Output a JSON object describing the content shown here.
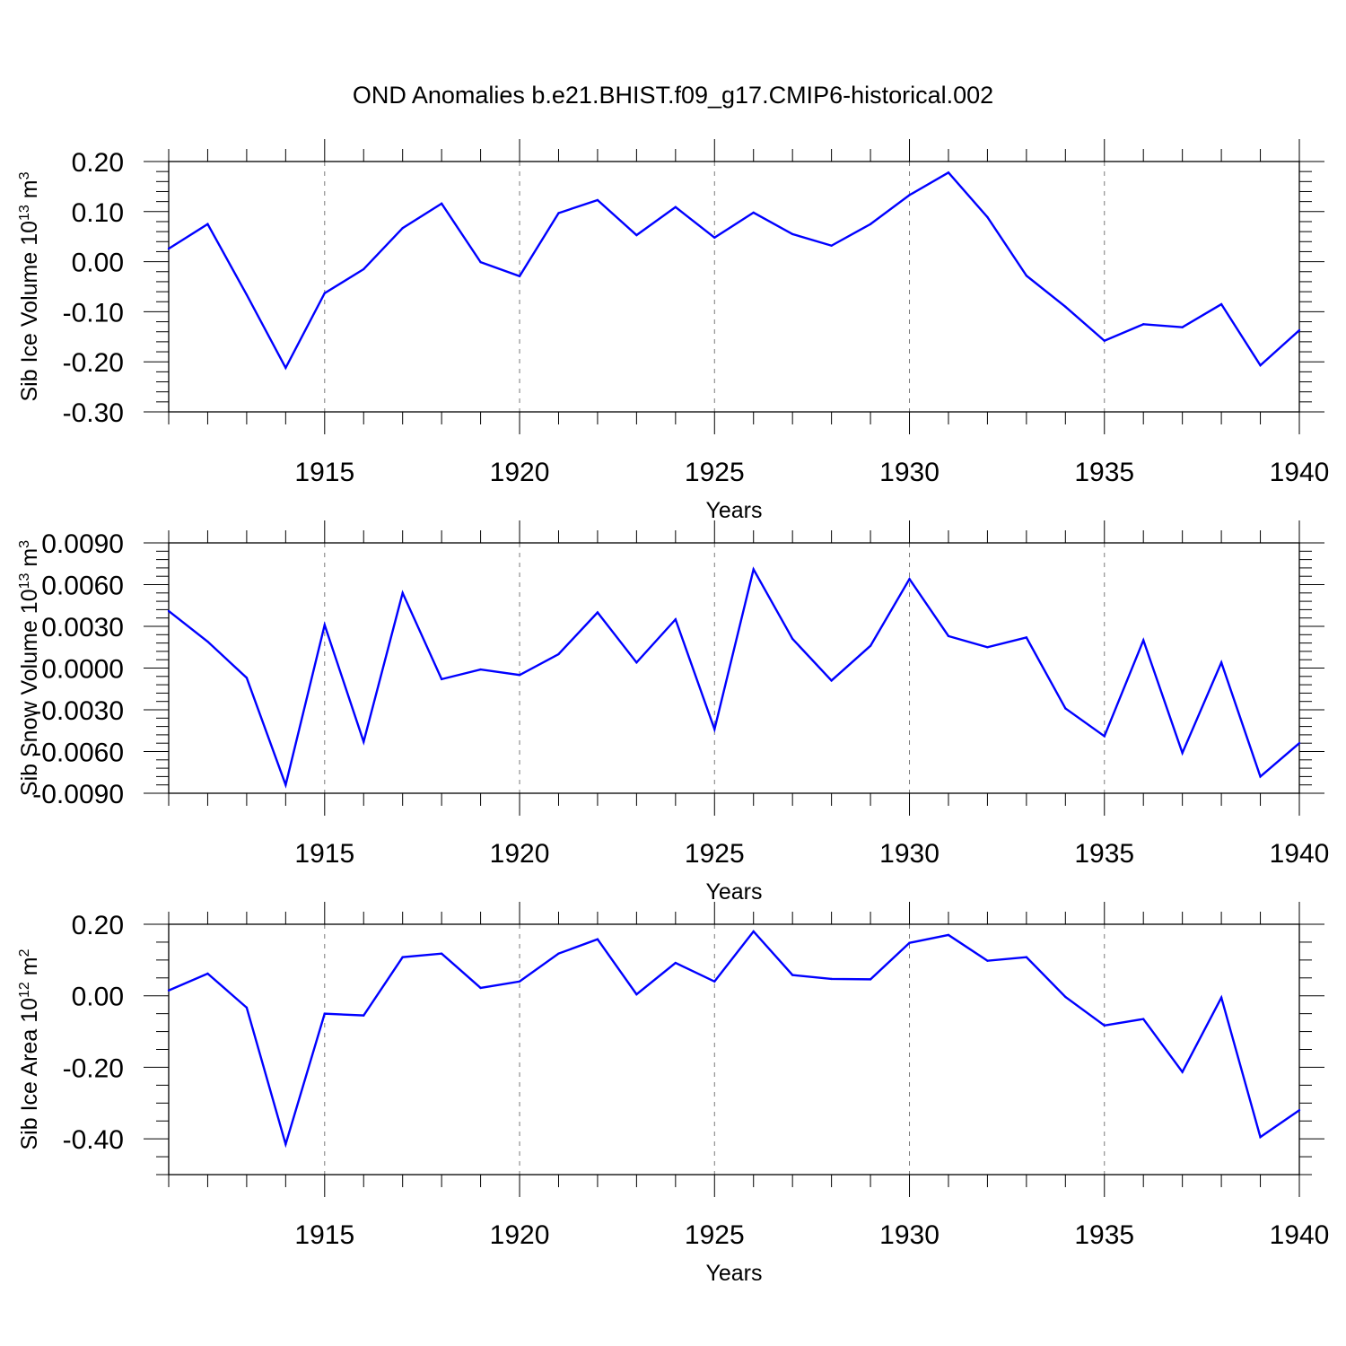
{
  "title": "OND Anomalies b.e21.BHIST.f09_g17.CMIP6-historical.002",
  "chart_data": [
    {
      "type": "line",
      "name": "ice-volume",
      "ylabel": "Sib Ice Volume 10",
      "ylabel_exp": "13",
      "ylabel_unit": " m",
      "ylabel_unit_exp": "3",
      "xlabel": "Years",
      "xlim": [
        1911,
        1940
      ],
      "ylim": [
        -0.3,
        0.2
      ],
      "yticks": [
        0.2,
        0.1,
        0.0,
        -0.1,
        -0.2,
        -0.3
      ],
      "ytick_labels": [
        "0.20",
        "0.10",
        "0.00",
        "-0.10",
        "-0.20",
        "-0.30"
      ],
      "xticks": [
        1915,
        1920,
        1925,
        1930,
        1935,
        1940
      ],
      "xtick_labels": [
        "1915",
        "1920",
        "1925",
        "1930",
        "1935",
        "1940"
      ],
      "line_color": "#0000ff",
      "x": [
        1911,
        1912,
        1913,
        1914,
        1915,
        1916,
        1917,
        1918,
        1919,
        1920,
        1921,
        1922,
        1923,
        1924,
        1925,
        1926,
        1927,
        1928,
        1929,
        1930,
        1931,
        1932,
        1933,
        1934,
        1935,
        1936,
        1937,
        1938,
        1939,
        1940
      ],
      "values": [
        0.026,
        0.075,
        -0.066,
        -0.212,
        -0.063,
        -0.015,
        0.067,
        0.116,
        -0.001,
        -0.029,
        0.097,
        0.123,
        0.053,
        0.109,
        0.048,
        0.098,
        0.055,
        0.032,
        0.075,
        0.133,
        0.178,
        0.089,
        -0.028,
        -0.09,
        -0.158,
        -0.125,
        -0.131,
        -0.085,
        -0.207,
        -0.137
      ]
    },
    {
      "type": "line",
      "name": "snow-volume",
      "ylabel": "Sib Snow Volume 10",
      "ylabel_exp": "13",
      "ylabel_unit": " m",
      "ylabel_unit_exp": "3",
      "xlabel": "Years",
      "xlim": [
        1911,
        1940
      ],
      "ylim": [
        -0.009,
        0.009
      ],
      "yticks": [
        0.009,
        0.006,
        0.003,
        0.0,
        -0.003,
        -0.006,
        -0.009
      ],
      "ytick_labels": [
        "0.0090",
        "0.0060",
        "0.0030",
        "0.0000",
        "-0.0030",
        "-0.0060",
        "-0.0090"
      ],
      "xticks": [
        1915,
        1920,
        1925,
        1930,
        1935,
        1940
      ],
      "xtick_labels": [
        "1915",
        "1920",
        "1925",
        "1930",
        "1935",
        "1940"
      ],
      "line_color": "#0000ff",
      "x": [
        1911,
        1912,
        1913,
        1914,
        1915,
        1916,
        1917,
        1918,
        1919,
        1920,
        1921,
        1922,
        1923,
        1924,
        1925,
        1926,
        1927,
        1928,
        1929,
        1930,
        1931,
        1932,
        1933,
        1934,
        1935,
        1936,
        1937,
        1938,
        1939,
        1940
      ],
      "values": [
        0.0041,
        0.0019,
        -0.0007,
        -0.0084,
        0.0031,
        -0.0053,
        0.0054,
        -0.0008,
        -0.0001,
        -0.0005,
        0.001,
        0.004,
        0.0004,
        0.0035,
        -0.0044,
        0.0071,
        0.0021,
        -0.0009,
        0.0016,
        0.0064,
        0.0023,
        0.0015,
        0.0022,
        -0.0029,
        -0.0049,
        0.002,
        -0.0061,
        0.0004,
        -0.0078,
        -0.0054
      ]
    },
    {
      "type": "line",
      "name": "ice-area",
      "ylabel": "Sib Ice Area 10",
      "ylabel_exp": "12",
      "ylabel_unit": " m",
      "ylabel_unit_exp": "2",
      "xlabel": "Years",
      "xlim": [
        1911,
        1940
      ],
      "ylim": [
        -0.5,
        0.2
      ],
      "yticks": [
        0.2,
        0.0,
        -0.2,
        -0.4
      ],
      "ytick_labels": [
        "0.20",
        "0.00",
        "-0.20",
        "-0.40"
      ],
      "xticks": [
        1915,
        1920,
        1925,
        1930,
        1935,
        1940
      ],
      "xtick_labels": [
        "1915",
        "1920",
        "1925",
        "1930",
        "1935",
        "1940"
      ],
      "line_color": "#0000ff",
      "x": [
        1911,
        1912,
        1913,
        1914,
        1915,
        1916,
        1917,
        1918,
        1919,
        1920,
        1921,
        1922,
        1923,
        1924,
        1925,
        1926,
        1927,
        1928,
        1929,
        1930,
        1931,
        1932,
        1933,
        1934,
        1935,
        1936,
        1937,
        1938,
        1939,
        1940
      ],
      "values": [
        0.015,
        0.062,
        -0.033,
        -0.415,
        -0.05,
        -0.055,
        0.108,
        0.118,
        0.022,
        0.04,
        0.118,
        0.158,
        0.004,
        0.092,
        0.04,
        0.18,
        0.058,
        0.047,
        0.046,
        0.148,
        0.17,
        0.098,
        0.108,
        -0.003,
        -0.083,
        -0.065,
        -0.213,
        -0.005,
        -0.395,
        -0.32
      ]
    }
  ]
}
